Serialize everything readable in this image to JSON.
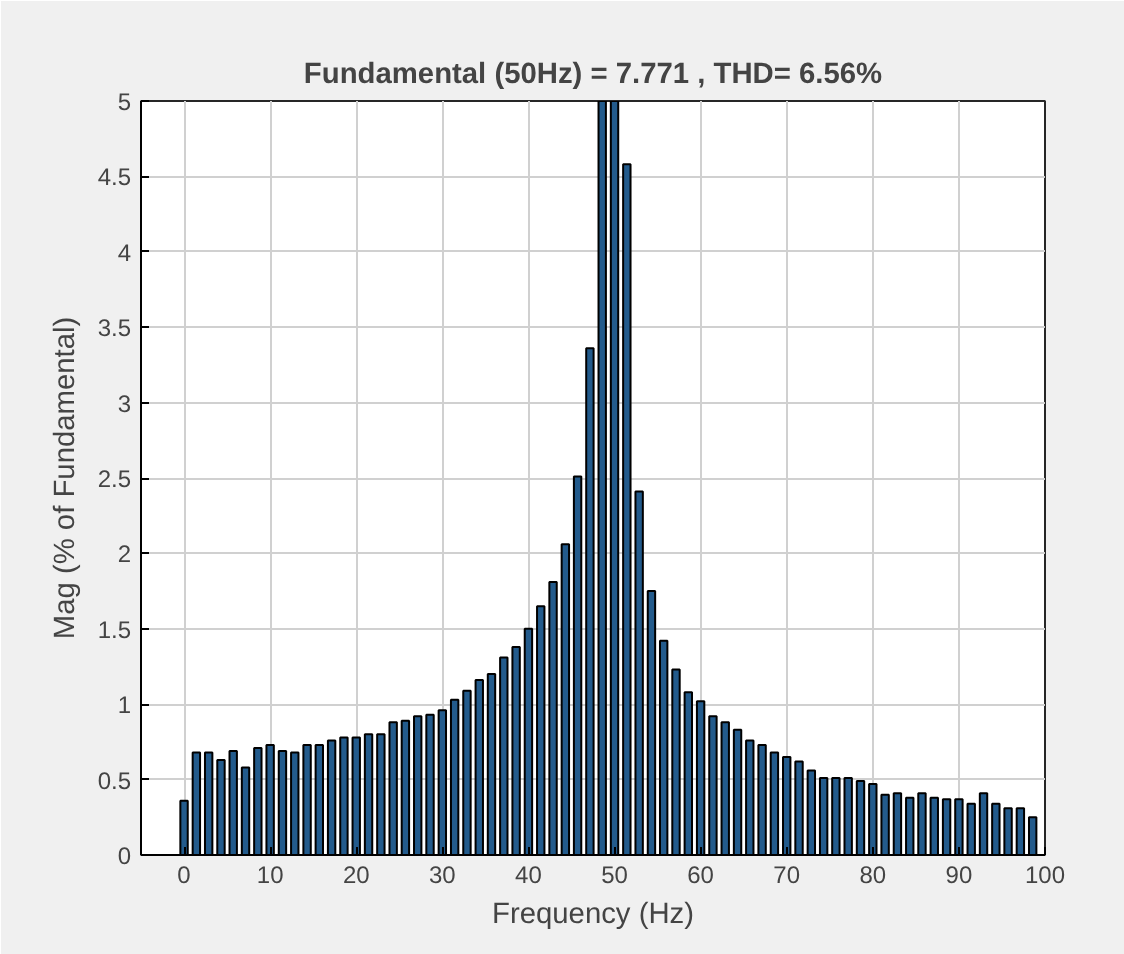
{
  "chart_data": {
    "type": "bar",
    "title": "Fundamental (50Hz) = 7.771 , THD= 6.56%",
    "xlabel": "Frequency (Hz)",
    "ylabel": "Mag (% of Fundamental)",
    "x": [
      0,
      1.43,
      2.86,
      4.29,
      5.71,
      7.14,
      8.57,
      10,
      11.43,
      12.86,
      14.29,
      15.71,
      17.14,
      18.57,
      20,
      21.43,
      22.86,
      24.29,
      25.71,
      27.14,
      28.57,
      30,
      31.43,
      32.86,
      34.29,
      35.71,
      37.14,
      38.57,
      40,
      41.43,
      42.86,
      44.29,
      45.71,
      47.14,
      48.57,
      50,
      51.43,
      52.86,
      54.29,
      55.71,
      57.14,
      58.57,
      60,
      61.43,
      62.86,
      64.29,
      65.71,
      67.14,
      68.57,
      70,
      71.43,
      72.86,
      74.29,
      75.71,
      77.14,
      78.57,
      80,
      81.43,
      82.86,
      84.29,
      85.71,
      87.14,
      88.57,
      90,
      91.43,
      92.86,
      94.29,
      95.71,
      97.14,
      98.57
    ],
    "values": [
      0.36,
      0.68,
      0.68,
      0.63,
      0.69,
      0.58,
      0.71,
      0.73,
      0.69,
      0.68,
      0.73,
      0.73,
      0.76,
      0.78,
      0.78,
      0.8,
      0.8,
      0.88,
      0.89,
      0.92,
      0.93,
      0.96,
      1.03,
      1.09,
      1.16,
      1.2,
      1.31,
      1.38,
      1.5,
      1.65,
      1.81,
      2.06,
      2.51,
      3.36,
      5,
      5,
      4.58,
      2.41,
      1.75,
      1.42,
      1.23,
      1.08,
      1.02,
      0.92,
      0.88,
      0.83,
      0.76,
      0.73,
      0.68,
      0.65,
      0.62,
      0.56,
      0.51,
      0.51,
      0.51,
      0.49,
      0.47,
      0.4,
      0.41,
      0.38,
      0.41,
      0.38,
      0.37,
      0.37,
      0.34,
      0.41,
      0.34,
      0.31,
      0.31,
      0.25
    ],
    "color": "#235b8c",
    "xlim": [
      -5,
      100
    ],
    "xticks": [
      0,
      10,
      20,
      30,
      40,
      50,
      60,
      70,
      80,
      90,
      100
    ],
    "ylim": [
      0,
      5
    ],
    "yticks": [
      0,
      0.5,
      1,
      1.5,
      2,
      2.5,
      3,
      3.5,
      4,
      4.5,
      5
    ],
    "grid": true
  }
}
